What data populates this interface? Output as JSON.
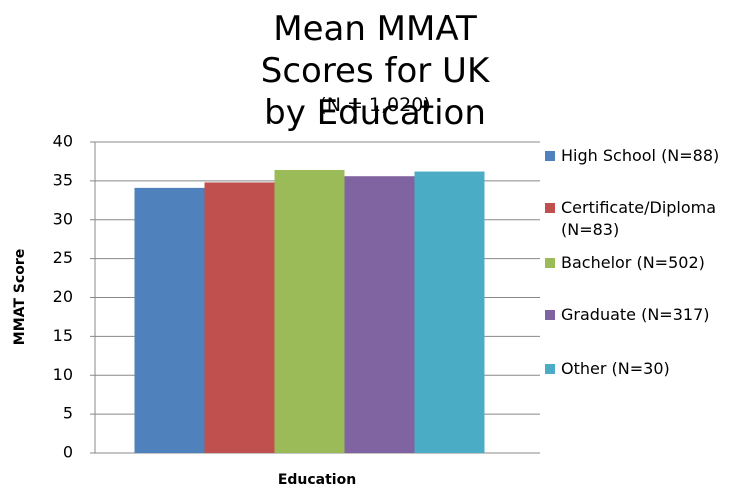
{
  "chart_data": {
    "type": "bar",
    "title": "Mean MMAT Scores for UK by Education",
    "subtitle": "(N = 1,020)",
    "x_label": "Education",
    "y_label": "MMAT Score",
    "categories": [
      null
    ],
    "series": [
      {
        "name": "High School (N=88)",
        "color": "#4f81bd",
        "values": [
          34.1
        ]
      },
      {
        "name": "Certificate/Diploma (N=83)",
        "color": "#c0504d",
        "values": [
          34.8
        ]
      },
      {
        "name": "Bachelor (N=502)",
        "color": "#9bbb59",
        "values": [
          36.4
        ]
      },
      {
        "name": "Graduate (N=317)",
        "color": "#8064a2",
        "values": [
          35.6
        ]
      },
      {
        "name": "Other (N=30)",
        "color": "#4bacc6",
        "values": [
          36.2
        ]
      }
    ],
    "ylim": [
      0,
      40
    ],
    "yticks": [
      0,
      5,
      10,
      15,
      20,
      25,
      30,
      35,
      40
    ],
    "grid": true,
    "legend": "right"
  }
}
